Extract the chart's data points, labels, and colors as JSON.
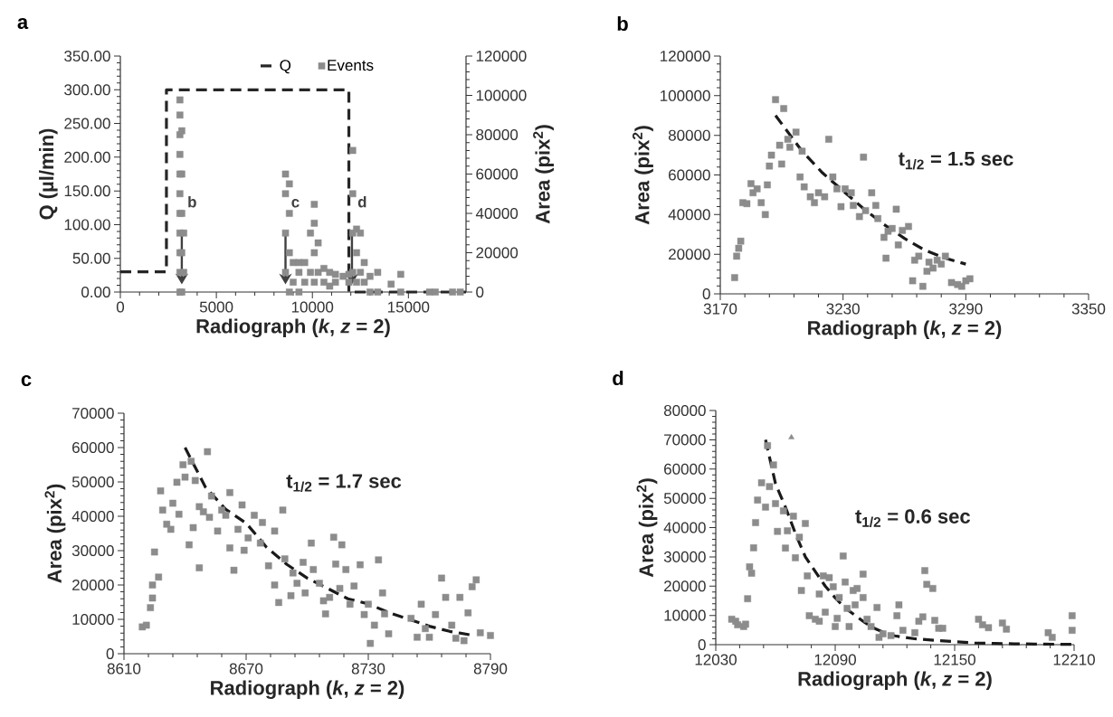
{
  "chart_data": [
    {
      "type": "scatter",
      "title": "a",
      "xlabel": "Radiograph (*k*, *z* = 2)",
      "ylabel": "Q (µl/min)",
      "y2label": "Area (pix$^{2}$)",
      "xlim": [
        0,
        18000
      ],
      "xticks": [
        0,
        5000,
        10000,
        15000
      ],
      "ylim": [
        0,
        350
      ],
      "yticks": [
        {
          "value": 0,
          "label": "0.00"
        },
        {
          "value": 50,
          "label": "50.00"
        },
        {
          "value": 100,
          "label": "100.00"
        },
        {
          "value": 150,
          "label": "150.00"
        },
        {
          "value": 200,
          "label": "200.00"
        },
        {
          "value": 250,
          "label": "250.00"
        },
        {
          "value": 300,
          "label": "300.00"
        },
        {
          "value": 350,
          "label": "350.00"
        }
      ],
      "y2lim": [
        0,
        120000
      ],
      "y2ticks": [
        0,
        20000,
        40000,
        60000,
        80000,
        100000,
        120000
      ],
      "legend": "top",
      "annotations": [
        {
          "text": "b",
          "x": 3200,
          "y": 85
        },
        {
          "text": "c",
          "x": 8600,
          "y": 85
        },
        {
          "text": "d",
          "x": 12060,
          "y": 85
        }
      ],
      "series": [
        {
          "name": "Q",
          "type": "line",
          "color": "#262626",
          "line_style": "dashed",
          "marker": "none",
          "x": [
            0,
            2400,
            2400,
            11900,
            11900,
            18000
          ],
          "values": [
            30,
            30,
            300,
            300,
            0,
            0
          ]
        },
        {
          "name": "Events",
          "axis": "y2",
          "color": "#8c8c8c",
          "marker": "square",
          "x": [
            3100,
            3100,
            3100,
            3100,
            3100,
            3100,
            3100,
            3100,
            3100,
            3100,
            3100,
            3200,
            3200,
            3200,
            3200,
            3200,
            3300,
            3300,
            8600,
            8600,
            8600,
            8600,
            8800,
            8800,
            8800,
            8800,
            9000,
            9000,
            9300,
            9300,
            9300,
            9600,
            9600,
            9900,
            9900,
            10100,
            10100,
            10100,
            10100,
            10300,
            10300,
            10600,
            10600,
            10900,
            10900,
            11200,
            11200,
            11600,
            11900,
            11900,
            12100,
            12100,
            12100,
            12100,
            12300,
            12300,
            12300,
            12500,
            12500,
            12700,
            12700,
            13000,
            13000,
            13400,
            13400,
            14100,
            14600,
            14600,
            16100,
            16400,
            17300,
            17700
          ],
          "values": [
            0,
            10000,
            20000,
            30000,
            40000,
            50000,
            60000,
            70000,
            80000,
            90000,
            97700,
            0,
            20000,
            40000,
            60000,
            82000,
            10000,
            30000,
            10000,
            30000,
            50000,
            60000,
            0,
            20000,
            40000,
            55000,
            5000,
            15000,
            0,
            10000,
            15000,
            5000,
            15000,
            10000,
            30000,
            5000,
            20000,
            35000,
            44600,
            10000,
            25000,
            5000,
            12000,
            3000,
            10000,
            5000,
            9000,
            8000,
            5000,
            9000,
            10000,
            30000,
            50000,
            72000,
            5000,
            20000,
            32000,
            10000,
            30000,
            5000,
            15000,
            0,
            8000,
            0,
            10000,
            4000,
            0,
            9000,
            0,
            0,
            0,
            0
          ]
        }
      ]
    },
    {
      "type": "scatter",
      "title": "b",
      "xlabel": "Radiograph (*k*, *z* = 2)",
      "ylabel": "Area (pix$^{2}$)",
      "xlim": [
        3170,
        3350
      ],
      "xticks": [
        3170,
        3230,
        3290,
        3350
      ],
      "ylim": [
        0,
        120000
      ],
      "yticks": [
        0,
        20000,
        40000,
        60000,
        80000,
        100000,
        120000
      ],
      "annotations": [
        "t$_{1/2}$ = 1.5 sec"
      ],
      "series": [
        {
          "color": "#8c8c8c",
          "marker": "square",
          "x": [
            3177,
            3178,
            3179,
            3180,
            3181,
            3183,
            3185,
            3186,
            3188,
            3190,
            3192,
            3193,
            3194,
            3195,
            3197,
            3199,
            3201,
            3200,
            3203,
            3204,
            3207,
            3210,
            3209,
            3211,
            3214,
            3216,
            3218,
            3221,
            3223,
            3225,
            3227,
            3229,
            3231,
            3234,
            3235,
            3238,
            3240,
            3241,
            3244,
            3246,
            3247,
            3250,
            3251,
            3252,
            3254,
            3256,
            3257,
            3259,
            3262,
            3264,
            3265,
            3267,
            3269,
            3271,
            3272,
            3274,
            3276,
            3278,
            3280,
            3283,
            3286,
            3288,
            3290,
            3292
          ],
          "values": [
            8200,
            19000,
            23000,
            26600,
            46000,
            45500,
            55600,
            51000,
            53000,
            46000,
            40000,
            55000,
            64500,
            70000,
            98000,
            75000,
            93500,
            65500,
            78000,
            74000,
            81600,
            72000,
            59000,
            54000,
            49000,
            46000,
            51000,
            49000,
            78000,
            59000,
            53000,
            44000,
            53000,
            51000,
            44600,
            39000,
            69000,
            42000,
            51000,
            44600,
            38000,
            28500,
            18000,
            31600,
            33000,
            42700,
            24700,
            32000,
            34000,
            6600,
            17000,
            19000,
            3800,
            11400,
            16000,
            13000,
            17000,
            15000,
            19000,
            5700,
            4700,
            3800,
            6600,
            7600
          ]
        },
        {
          "type": "line",
          "color": "#1a1a1a",
          "line_style": "dashed",
          "marker": "none",
          "x": [
            3197,
            3210,
            3220,
            3230,
            3240,
            3250,
            3260,
            3270,
            3280,
            3290
          ],
          "values": [
            90000,
            72000,
            61000,
            52000,
            43000,
            35000,
            28000,
            22000,
            18000,
            15000
          ]
        }
      ]
    },
    {
      "type": "scatter",
      "title": "c",
      "xlabel": "Radiograph (*k*, *z* = 2)",
      "ylabel": "Area (pix$^{2}$)",
      "xlim": [
        8610,
        8790
      ],
      "xticks": [
        8610,
        8670,
        8730,
        8790
      ],
      "ylim": [
        0,
        70000
      ],
      "yticks": [
        0,
        10000,
        20000,
        30000,
        40000,
        50000,
        60000,
        70000
      ],
      "annotations": [
        "t$_{1/2}$ = 1.7 sec"
      ],
      "series": [
        {
          "color": "#8c8c8c",
          "marker": "square",
          "x": [
            8619,
            8621,
            8623,
            8624,
            8624,
            8625,
            8627,
            8628,
            8629,
            8631,
            8633,
            8634,
            8636,
            8637,
            8639,
            8640,
            8642,
            8643,
            8644,
            8645,
            8647,
            8647,
            8649,
            8651,
            8652,
            8653,
            8656,
            8658,
            8660,
            8662,
            8662,
            8664,
            8666,
            8668,
            8669,
            8671,
            8674,
            8677,
            8678,
            8681,
            8684,
            8684,
            8686,
            8688,
            8689,
            8692,
            8693,
            8695,
            8698,
            8699,
            8702,
            8703,
            8706,
            8708,
            8709,
            8711,
            8713,
            8714,
            8716,
            8717,
            8719,
            8721,
            8723,
            8726,
            8728,
            8730,
            8731,
            8733,
            8735,
            8737,
            8738,
            8740,
            8751,
            8754,
            8756,
            8758,
            8760,
            8763,
            8766,
            8768,
            8771,
            8773,
            8775,
            8777,
            8779,
            8781,
            8783,
            8785,
            8790
          ],
          "values": [
            7800,
            8300,
            13400,
            16200,
            20000,
            29600,
            22300,
            47400,
            41800,
            37700,
            36200,
            43800,
            49900,
            40600,
            55000,
            51400,
            31700,
            56000,
            36700,
            50400,
            25000,
            42800,
            41300,
            58800,
            39700,
            45900,
            35700,
            41800,
            40300,
            46900,
            30800,
            24300,
            36200,
            43300,
            30100,
            33700,
            40300,
            32200,
            38200,
            25600,
            35700,
            20000,
            14900,
            41800,
            27600,
            16900,
            23500,
            20500,
            26600,
            17700,
            32200,
            24500,
            20500,
            15400,
            11600,
            16400,
            33900,
            26100,
            19000,
            31700,
            24500,
            14400,
            19700,
            25900,
            11400,
            14400,
            3000,
            8300,
            27300,
            17700,
            11600,
            5800,
            10300,
            4800,
            14400,
            7300,
            4800,
            11400,
            22000,
            16400,
            8300,
            4500,
            16400,
            3800,
            11900,
            19500,
            21500,
            6100,
            5300
          ]
        },
        {
          "type": "line",
          "color": "#1a1a1a",
          "line_style": "dashed",
          "marker": "none",
          "x": [
            8640,
            8650,
            8660,
            8670,
            8680,
            8690,
            8700,
            8710,
            8720,
            8730,
            8740,
            8750,
            8760,
            8770,
            8780
          ],
          "values": [
            60000,
            48500,
            42000,
            38000,
            31000,
            26000,
            22000,
            19000,
            16000,
            14500,
            12000,
            10000,
            8000,
            6500,
            5500
          ]
        }
      ]
    },
    {
      "type": "scatter",
      "title": "d",
      "xlabel": "Radiograph (*k*, *z* = 2)",
      "ylabel": "Area (pix$^{2}$)",
      "xlim": [
        12030,
        12210
      ],
      "xticks": [
        12030,
        12090,
        12150,
        12210
      ],
      "ylim": [
        0,
        80000
      ],
      "yticks": [
        0,
        10000,
        20000,
        30000,
        40000,
        50000,
        60000,
        70000,
        80000
      ],
      "annotations": [
        "t$_{1/2}$ = 0.6 sec"
      ],
      "series": [
        {
          "color": "#8c8c8c",
          "marker": "square",
          "x": [
            12038,
            12040,
            12041,
            12044,
            12045,
            12046,
            12047,
            12048,
            12049,
            12050,
            12051,
            12053,
            12055,
            12056,
            12057,
            12059,
            12060,
            12061,
            12064,
            12065,
            12066,
            12069,
            12070,
            12072,
            12073,
            12075,
            12076,
            12077,
            12080,
            12082,
            12082,
            12084,
            12085,
            12087,
            12089,
            12090,
            12091,
            12092,
            12094,
            12095,
            12096,
            12097,
            12099,
            12100,
            12101,
            12104,
            12104,
            12106,
            12108,
            12111,
            12112,
            12114,
            12118,
            12121,
            12122,
            12124,
            12130,
            12132,
            12134,
            12135,
            12136,
            12139,
            12140,
            12142,
            12144,
            12162,
            12164,
            12167,
            12174,
            12176,
            12197,
            12199,
            12209,
            12209
          ],
          "values": [
            8700,
            8000,
            6800,
            6200,
            7000,
            15700,
            26600,
            24400,
            33100,
            41700,
            49400,
            55300,
            47000,
            68000,
            54000,
            61400,
            48200,
            38700,
            45700,
            33000,
            38900,
            43900,
            29700,
            36700,
            18500,
            41400,
            23500,
            9900,
            8700,
            17300,
            8000,
            23500,
            11100,
            22900,
            19800,
            6200,
            9000,
            16100,
            30300,
            21400,
            12400,
            6200,
            18500,
            13600,
            19200,
            24100,
            16100,
            8700,
            6200,
            12700,
            2500,
            3700,
            3100,
            9900,
            13600,
            4900,
            4100,
            8000,
            9500,
            25300,
            20600,
            19200,
            8300,
            5600,
            5600,
            8700,
            6800,
            5800,
            7400,
            5300,
            4100,
            2500,
            4900,
            9900
          ]
        },
        {
          "color": "#8c8c8c",
          "marker": "triangle",
          "x": [
            12068
          ],
          "values": [
            70800
          ]
        },
        {
          "type": "line",
          "color": "#1a1a1a",
          "line_style": "dashed",
          "marker": "none",
          "x": [
            12055,
            12060,
            12065,
            12070,
            12075,
            12080,
            12085,
            12090,
            12095,
            12100,
            12105,
            12110,
            12115,
            12120,
            12130,
            12140,
            12150,
            12160,
            12170,
            12180,
            12190,
            12210
          ],
          "values": [
            70000,
            55000,
            47000,
            38000,
            30000,
            25000,
            20000,
            16000,
            12500,
            10000,
            7500,
            5500,
            4000,
            3000,
            2000,
            1500,
            1000,
            600,
            400,
            300,
            200,
            100
          ]
        }
      ]
    }
  ]
}
